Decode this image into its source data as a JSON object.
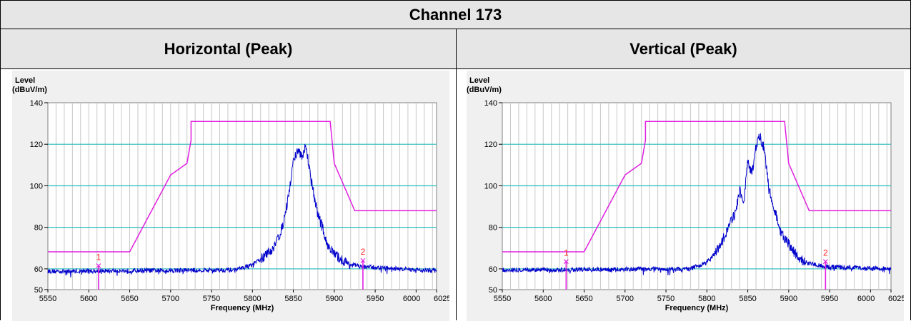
{
  "table": {
    "title": "Channel 173",
    "col_left": "Horizontal (Peak)",
    "col_right": "Vertical (Peak)"
  },
  "colors": {
    "trace": "#0000cc",
    "mask": "#e020e0",
    "grid_h": "#3cc0c0",
    "grid_v": "#c8c8c8",
    "marker_label": "#ff2020"
  },
  "chart_data": [
    {
      "type": "line",
      "ylabel_line1": "Level",
      "ylabel_line2": "(dBuV/m)",
      "xlabel": "Frequency (MHz)",
      "xlim": [
        5550,
        6025
      ],
      "ylim": [
        50,
        140
      ],
      "xticks": [
        5550,
        5600,
        5650,
        5700,
        5750,
        5800,
        5850,
        5900,
        5950,
        6000,
        6025
      ],
      "xtick_labels": [
        "5550",
        "5600",
        "5650",
        "5700",
        "5750",
        "5800",
        "5850",
        "5900",
        "5950",
        "6000",
        "6025"
      ],
      "yticks": [
        50,
        60,
        80,
        100,
        120,
        140
      ],
      "ytick_labels": [
        "50",
        "60",
        "80",
        "100",
        "120",
        "140"
      ],
      "series": [
        {
          "role": "mask",
          "x": [
            5550,
            5650,
            5700,
            5720,
            5725,
            5725,
            5895,
            5900,
            5925,
            6025
          ],
          "y": [
            68.2,
            68.2,
            105.2,
            110.8,
            122,
            131,
            131,
            110.8,
            88,
            88
          ]
        },
        {
          "role": "trace",
          "noise_floor": 58.8,
          "x": [
            5550,
            5780,
            5800,
            5815,
            5825,
            5835,
            5840,
            5845,
            5850,
            5855,
            5860,
            5865,
            5870,
            5875,
            5880,
            5885,
            5890,
            5895,
            5900,
            5910,
            5920,
            5935,
            6025
          ],
          "y": [
            58.8,
            59.5,
            62,
            66,
            70,
            78,
            86,
            97,
            112,
            117,
            114,
            119,
            108,
            96,
            86,
            81,
            73,
            70,
            67,
            64,
            62,
            61,
            59
          ]
        }
      ],
      "markers": [
        {
          "label": "1",
          "x": 5612,
          "y": 61.5
        },
        {
          "label": "2",
          "x": 5935,
          "y": 64
        }
      ]
    },
    {
      "type": "line",
      "ylabel_line1": "Level",
      "ylabel_line2": "(dBuV/m)",
      "xlabel": "Frequency (MHz)",
      "xlim": [
        5550,
        6025
      ],
      "ylim": [
        50,
        140
      ],
      "xticks": [
        5550,
        5600,
        5650,
        5700,
        5750,
        5800,
        5850,
        5900,
        5950,
        6000,
        6025
      ],
      "xtick_labels": [
        "5550",
        "5600",
        "5650",
        "5700",
        "5750",
        "5800",
        "5850",
        "5900",
        "5950",
        "6000",
        "6025"
      ],
      "yticks": [
        50,
        60,
        80,
        100,
        120,
        140
      ],
      "ytick_labels": [
        "50",
        "60",
        "80",
        "100",
        "120",
        "140"
      ],
      "series": [
        {
          "role": "mask",
          "x": [
            5550,
            5650,
            5700,
            5720,
            5725,
            5725,
            5895,
            5900,
            5925,
            6025
          ],
          "y": [
            68.2,
            68.2,
            105.2,
            110.8,
            122,
            131,
            131,
            110.8,
            88,
            88
          ]
        },
        {
          "role": "trace",
          "noise_floor": 59.5,
          "x": [
            5550,
            5780,
            5800,
            5815,
            5825,
            5835,
            5840,
            5845,
            5850,
            5855,
            5860,
            5865,
            5870,
            5875,
            5880,
            5885,
            5890,
            5895,
            5900,
            5910,
            5920,
            5945,
            6025
          ],
          "y": [
            59.5,
            60,
            63,
            70,
            79,
            87,
            98,
            92,
            112,
            106,
            119,
            124,
            118,
            101,
            92,
            85,
            78,
            75,
            72,
            66,
            63,
            61,
            60
          ]
        }
      ],
      "markers": [
        {
          "label": "1",
          "x": 5628,
          "y": 63.5
        },
        {
          "label": "2",
          "x": 5945,
          "y": 63.5
        }
      ]
    }
  ]
}
